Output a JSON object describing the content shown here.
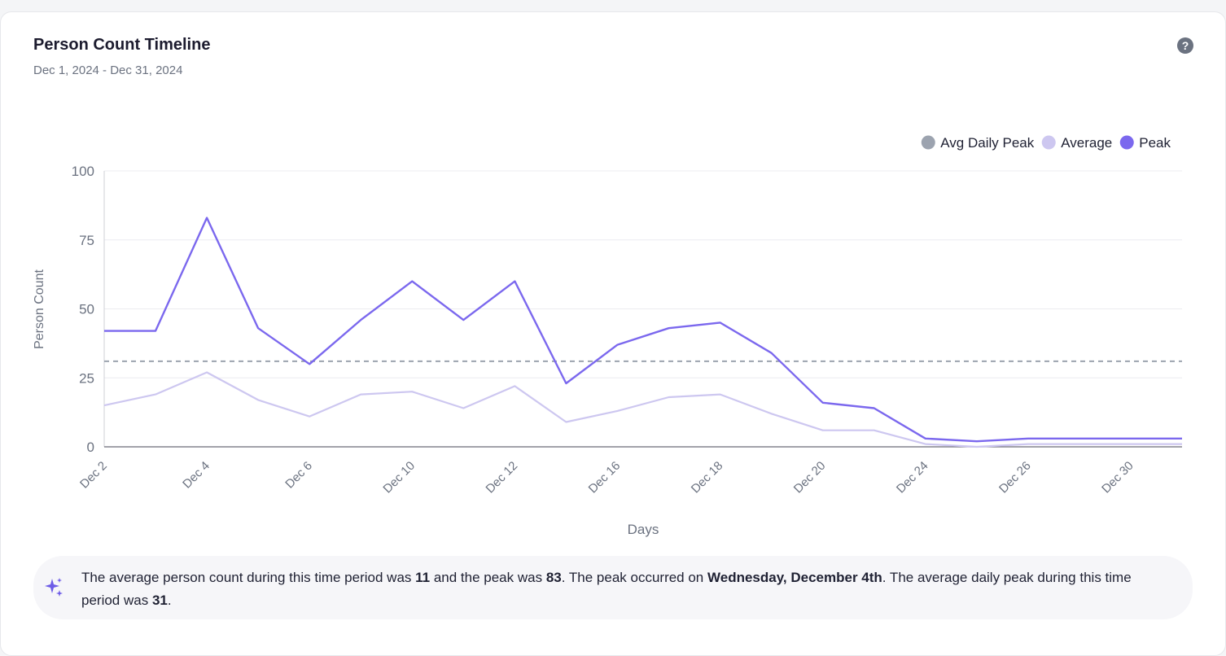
{
  "card": {
    "title": "Person Count Timeline",
    "subtitle": "Dec 1, 2024 - Dec 31, 2024",
    "help_icon": "question-circle-icon"
  },
  "chart_data": {
    "type": "line",
    "x": [
      "Dec 2",
      "Dec 3",
      "Dec 4",
      "Dec 5",
      "Dec 6",
      "Dec 9",
      "Dec 10",
      "Dec 11",
      "Dec 12",
      "Dec 13",
      "Dec 16",
      "Dec 17",
      "Dec 18",
      "Dec 19",
      "Dec 20",
      "Dec 23",
      "Dec 24",
      "Dec 25",
      "Dec 26",
      "Dec 27",
      "Dec 30",
      "Dec 31"
    ],
    "tick_labels": [
      "Dec 2",
      "Dec 4",
      "Dec 6",
      "Dec 10",
      "Dec 12",
      "Dec 16",
      "Dec 18",
      "Dec 20",
      "Dec 24",
      "Dec 26",
      "Dec 30"
    ],
    "series": [
      {
        "name": "Peak",
        "color": "#7b68ee",
        "values": [
          42,
          42,
          83,
          43,
          30,
          46,
          60,
          46,
          60,
          23,
          37,
          43,
          45,
          34,
          16,
          14,
          3,
          2,
          3,
          3,
          3,
          3
        ]
      },
      {
        "name": "Average",
        "color": "#cdc7f0",
        "values": [
          15,
          19,
          27,
          17,
          11,
          19,
          20,
          14,
          22,
          9,
          13,
          18,
          19,
          12,
          6,
          6,
          1,
          0,
          1,
          1,
          1,
          1
        ]
      }
    ],
    "reference_line": {
      "name": "Avg Daily Peak",
      "value": 31,
      "color": "#9ca3af"
    },
    "legend": [
      {
        "name": "Avg Daily Peak",
        "color": "#9ca3af"
      },
      {
        "name": "Average",
        "color": "#cdc7f0"
      },
      {
        "name": "Peak",
        "color": "#7b68ee"
      }
    ],
    "legend_position": "top-right",
    "xlabel": "Days",
    "ylabel": "Person Count",
    "ylim": [
      0,
      100
    ],
    "yticks": [
      0,
      25,
      50,
      75,
      100
    ],
    "grid": true
  },
  "insight": {
    "icon": "sparkles-icon",
    "t1": "The average person count during this time period was ",
    "avg": "11",
    "t2": " and the peak was ",
    "peak": "83",
    "t3": ". The peak occurred on ",
    "peak_day": "Wednesday, December 4th",
    "t4": ". The average daily peak during this time period was ",
    "avg_daily_peak": "31",
    "t5": "."
  }
}
